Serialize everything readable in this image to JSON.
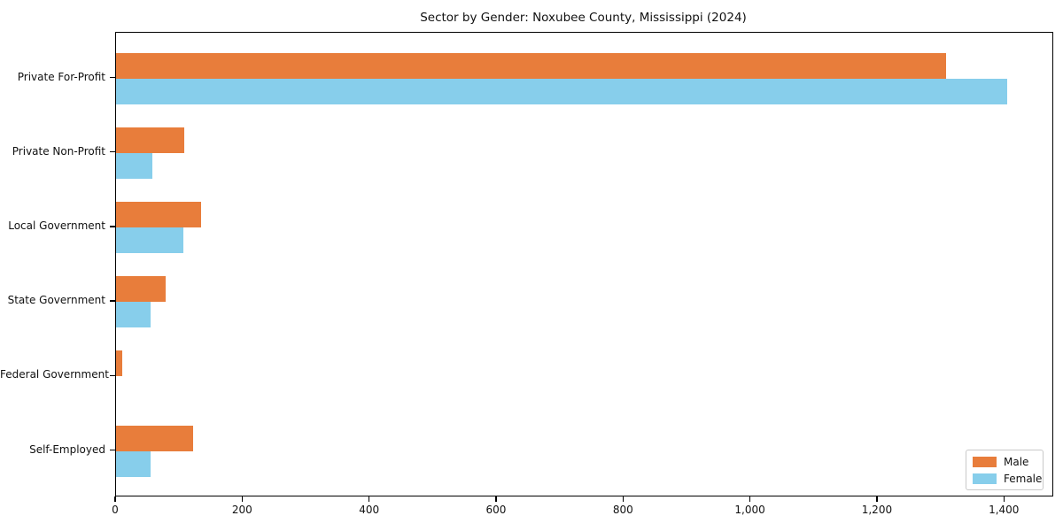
{
  "chart_data": {
    "type": "bar",
    "orientation": "horizontal",
    "title": "Sector by Gender: Noxubee County, Mississippi (2024)",
    "categories": [
      "Private For-Profit",
      "Private Non-Profit",
      "Local Government",
      "State Government",
      "Federal Government",
      "Self-Employed"
    ],
    "series": [
      {
        "name": "Male",
        "color": "#E87D3B",
        "values": [
          1308,
          108,
          134,
          78,
          10,
          122
        ]
      },
      {
        "name": "Female",
        "color": "#87CEEB",
        "values": [
          1404,
          57,
          106,
          54,
          0,
          54
        ]
      }
    ],
    "xlim": [
      0,
      1475
    ],
    "xticks": [
      {
        "value": 0,
        "label": "0"
      },
      {
        "value": 200,
        "label": "200"
      },
      {
        "value": 400,
        "label": "400"
      },
      {
        "value": 600,
        "label": "600"
      },
      {
        "value": 800,
        "label": "800"
      },
      {
        "value": 1000,
        "label": "1,000"
      },
      {
        "value": 1200,
        "label": "1,200"
      },
      {
        "value": 1400,
        "label": "1,400"
      }
    ],
    "xlabel": "",
    "ylabel": "",
    "grid": false,
    "legend_position": "lower right",
    "background_color": "#ffffff",
    "spine_color": "#000000"
  }
}
